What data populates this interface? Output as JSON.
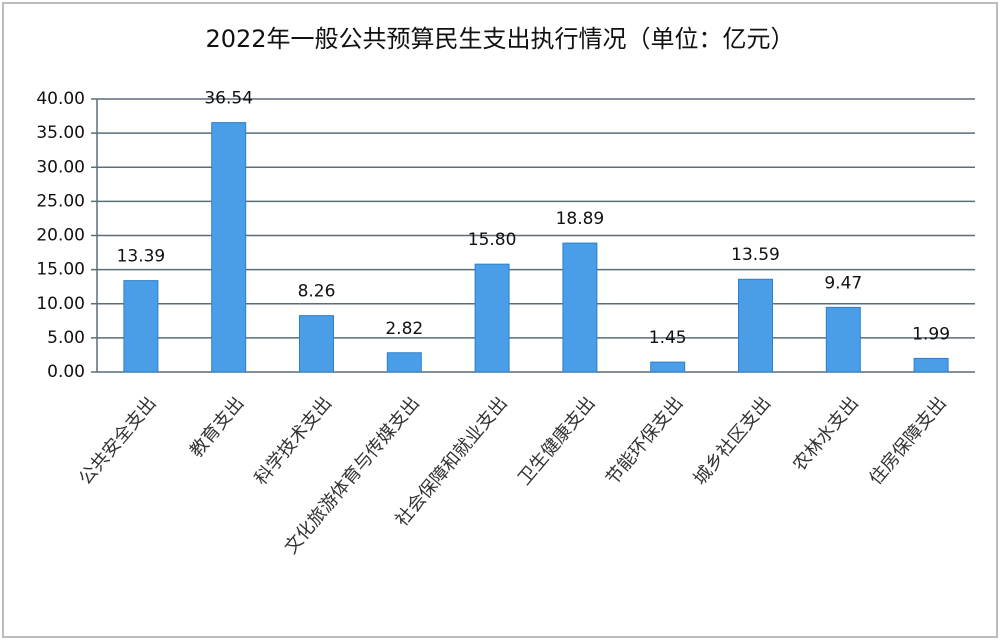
{
  "chart_data": {
    "type": "bar",
    "title": "2022年一般公共预算民生支出执行情况（单位：亿元）",
    "categories": [
      "公共安全支出",
      "教育支出",
      "科学技术支出",
      "文化旅游体育与传媒支出",
      "社会保障和就业支出",
      "卫生健康支出",
      "节能环保支出",
      "城乡社区支出",
      "农林水支出",
      "住房保障支出"
    ],
    "values": [
      13.39,
      36.54,
      8.26,
      2.82,
      15.8,
      18.89,
      1.45,
      13.59,
      9.47,
      1.99
    ],
    "value_labels": [
      "13.39",
      "36.54",
      "8.26",
      "2.82",
      "15.80",
      "18.89",
      "1.45",
      "13.59",
      "9.47",
      "1.99"
    ],
    "color": "#4a9ee8",
    "ylim": [
      0,
      40
    ],
    "yticks": [
      {
        "value": 0,
        "label": "0.00"
      },
      {
        "value": 5,
        "label": "5.00"
      },
      {
        "value": 10,
        "label": "10.00"
      },
      {
        "value": 15,
        "label": "15.00"
      },
      {
        "value": 20,
        "label": "20.00"
      },
      {
        "value": 25,
        "label": "25.00"
      },
      {
        "value": 30,
        "label": "30.00"
      },
      {
        "value": 35,
        "label": "35.00"
      },
      {
        "value": 40,
        "label": "40.00"
      }
    ],
    "grid": true
  }
}
